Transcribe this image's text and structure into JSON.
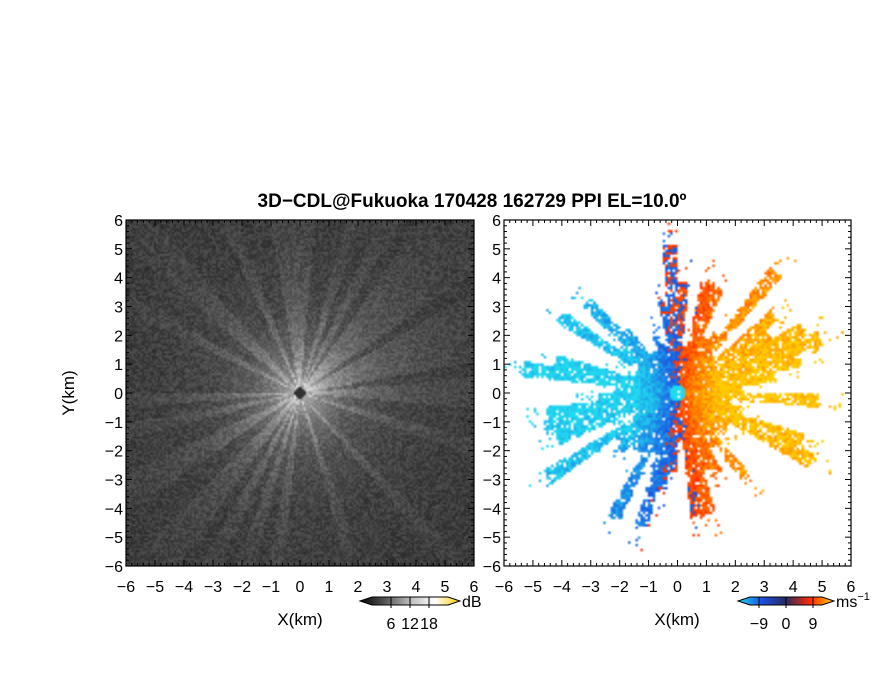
{
  "title": "3D−CDL@Fukuoka 170428 162729 PPI EL=10.0º",
  "chart_data": [
    {
      "type": "heatmap",
      "panel": "reflectivity",
      "xlabel": "X(km)",
      "ylabel": "Y(km)",
      "xlim": [
        -6,
        6
      ],
      "ylim": [
        -6,
        6
      ],
      "xticks": [
        "−6",
        "−5",
        "−4",
        "−3",
        "−2",
        "−1",
        "0",
        "1",
        "2",
        "3",
        "4",
        "5",
        "6"
      ],
      "yticks": [
        "−6",
        "−5",
        "−4",
        "−3",
        "−2",
        "−1",
        "0",
        "1",
        "2",
        "3",
        "4",
        "5",
        "6"
      ],
      "field_extent_km": 6,
      "colormap": "grayscale",
      "colorbar": {
        "unit": "dB",
        "ticks": [
          "6",
          "12",
          "18"
        ],
        "range": [
          0,
          24
        ]
      }
    },
    {
      "type": "heatmap",
      "panel": "doppler-velocity",
      "xlabel": "X(km)",
      "xlim": [
        -6,
        6
      ],
      "ylim": [
        -6,
        6
      ],
      "xticks": [
        "−6",
        "−5",
        "−4",
        "−3",
        "−2",
        "−1",
        "0",
        "1",
        "2",
        "3",
        "4",
        "5",
        "6"
      ],
      "yticks": [
        "−6",
        "−5",
        "−4",
        "−3",
        "−2",
        "−1",
        "0",
        "1",
        "2",
        "3",
        "4",
        "5",
        "6"
      ],
      "field_extent_km": 5.5,
      "colormap": "cyan-blue-red-yellow",
      "colorbar": {
        "unit": "ms",
        "unit_exp": "−1",
        "ticks": [
          "−9",
          "0",
          "9"
        ],
        "range": [
          -12,
          12
        ]
      }
    }
  ],
  "colors": {
    "neg_far": "#21d9f0",
    "neg_near": "#1a4fe0",
    "pos_near": "#ff2a00",
    "pos_far": "#ffcc00",
    "background": "#ffffff",
    "axis": "#000000"
  }
}
